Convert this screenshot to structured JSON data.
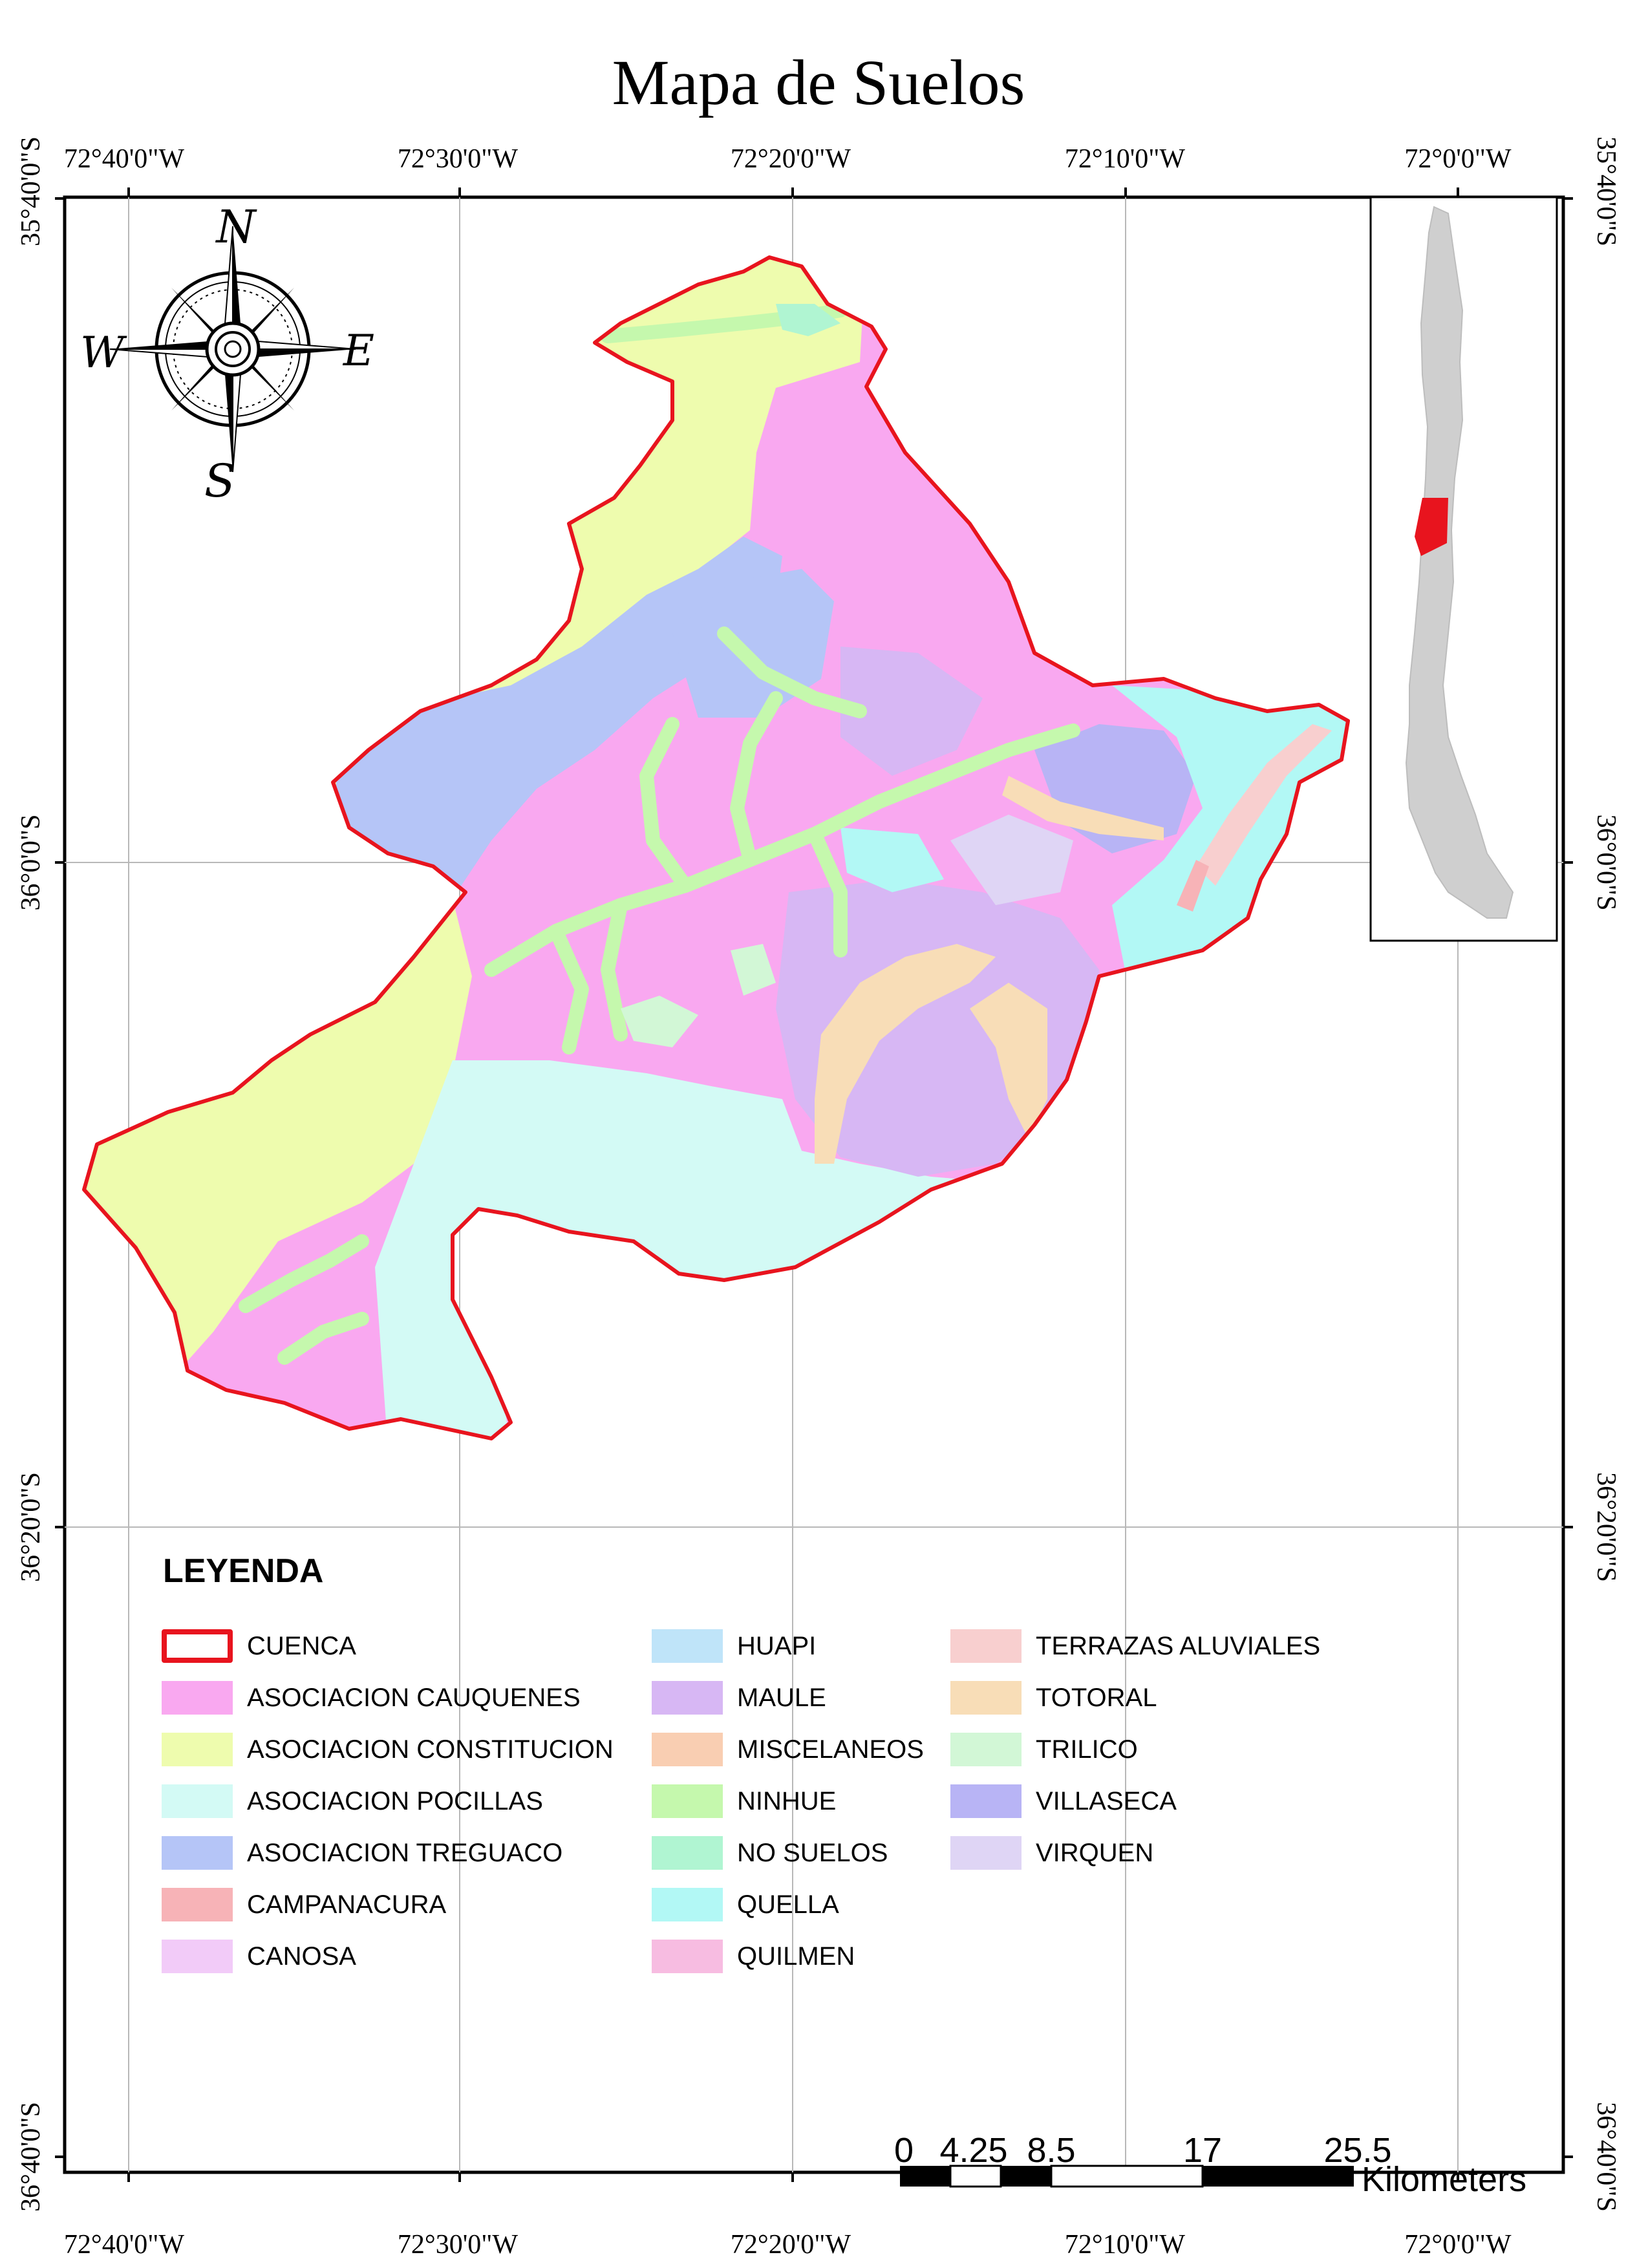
{
  "map": {
    "title": "Mapa de Suelos",
    "lon_ticks": [
      "72°40'0\"W",
      "72°30'0\"W",
      "72°20'0\"W",
      "72°10'0\"W",
      "72°0'0\"W"
    ],
    "lat_ticks": [
      "35°40'0\"S",
      "36°0'0\"S",
      "36°20'0\"S",
      "36°40'0\"S"
    ],
    "boundary_color": "#e8141e",
    "highlight_color": "#e8141e",
    "inset_land_color": "#cfcfcf"
  },
  "compass": {
    "n": "N",
    "s": "S",
    "e": "E",
    "w": "W"
  },
  "legend": {
    "title": "LEYENDA",
    "items": [
      {
        "label": "CUENCA",
        "color": "outline"
      },
      {
        "label": "ASOCIACION CAUQUENES",
        "color": "#f9a8f0"
      },
      {
        "label": "ASOCIACION CONSTITUCION",
        "color": "#eefcae"
      },
      {
        "label": "ASOCIACION POCILLAS",
        "color": "#d3faf5"
      },
      {
        "label": "ASOCIACION TREGUACO",
        "color": "#b5c5f7"
      },
      {
        "label": "CAMPANACURA",
        "color": "#f7b3b7"
      },
      {
        "label": "CANOSA",
        "color": "#f2cbf8"
      },
      {
        "label": "HUAPI",
        "color": "#bfe4f9"
      },
      {
        "label": "MAULE",
        "color": "#d7b7f4"
      },
      {
        "label": "MISCELANEOS",
        "color": "#f9ceb2"
      },
      {
        "label": "NINHUE",
        "color": "#c5f8ad"
      },
      {
        "label": "NO SUELOS",
        "color": "#b0f5d2"
      },
      {
        "label": "QUELLA",
        "color": "#b2f8f5"
      },
      {
        "label": "QUILMEN",
        "color": "#f7bce1"
      },
      {
        "label": "TERRAZAS ALUVIALES",
        "color": "#f8cfcf"
      },
      {
        "label": "TOTORAL",
        "color": "#f8ddb7"
      },
      {
        "label": "TRILICO",
        "color": "#d2f7d6"
      },
      {
        "label": "VILLASECA",
        "color": "#b8b4f5"
      },
      {
        "label": "VIRQUEN",
        "color": "#dfd5f5"
      }
    ]
  },
  "scale_bar": {
    "labels": [
      "0",
      "4.25",
      "8.5",
      "17",
      "25.5"
    ],
    "unit": "Kilometers"
  }
}
